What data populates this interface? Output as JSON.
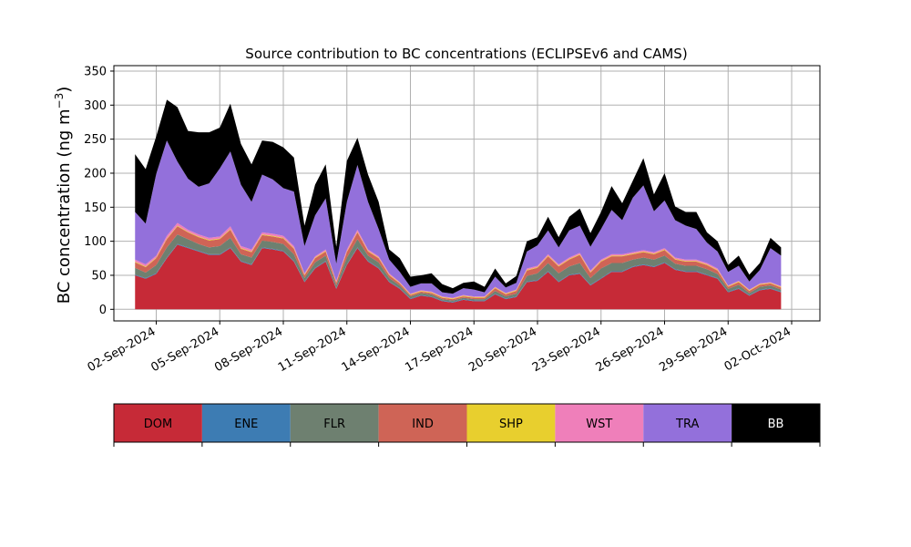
{
  "chart_data": {
    "type": "area",
    "title": "Source contribution to BC concentrations (ECLIPSEv6 and CAMS)",
    "ylabel": "BC concentration (ng m",
    "ylabel_sup": "−3",
    "ylabel_close": ")",
    "xlabel": "",
    "ylim": [
      -17,
      358
    ],
    "xlim": [
      "2024-08-31T00:00",
      "2024-10-03T08:00"
    ],
    "yticks": [
      0,
      50,
      100,
      150,
      200,
      250,
      300,
      350
    ],
    "xticks": [
      "2024-09-02",
      "2024-09-05",
      "2024-09-08",
      "2024-09-11",
      "2024-09-14",
      "2024-09-17",
      "2024-09-20",
      "2024-09-23",
      "2024-09-26",
      "2024-09-29",
      "2024-10-02"
    ],
    "xtick_labels": [
      "02-Sep-2024",
      "05-Sep-2024",
      "08-Sep-2024",
      "11-Sep-2024",
      "14-Sep-2024",
      "17-Sep-2024",
      "20-Sep-2024",
      "23-Sep-2024",
      "26-Sep-2024",
      "29-Sep-2024",
      "02-Oct-2024"
    ],
    "grid": true,
    "stacked": true,
    "x": [
      "2024-09-01T00:00",
      "2024-09-01T12:00",
      "2024-09-02T00:00",
      "2024-09-02T12:00",
      "2024-09-03T00:00",
      "2024-09-03T12:00",
      "2024-09-04T00:00",
      "2024-09-04T12:00",
      "2024-09-05T00:00",
      "2024-09-05T12:00",
      "2024-09-06T00:00",
      "2024-09-06T12:00",
      "2024-09-07T00:00",
      "2024-09-07T12:00",
      "2024-09-08T00:00",
      "2024-09-08T12:00",
      "2024-09-09T00:00",
      "2024-09-09T12:00",
      "2024-09-10T00:00",
      "2024-09-10T12:00",
      "2024-09-11T00:00",
      "2024-09-11T12:00",
      "2024-09-12T00:00",
      "2024-09-12T12:00",
      "2024-09-13T00:00",
      "2024-09-13T12:00",
      "2024-09-14T00:00",
      "2024-09-14T12:00",
      "2024-09-15T00:00",
      "2024-09-15T12:00",
      "2024-09-16T00:00",
      "2024-09-16T12:00",
      "2024-09-17T00:00",
      "2024-09-17T12:00",
      "2024-09-18T00:00",
      "2024-09-18T12:00",
      "2024-09-19T00:00",
      "2024-09-19T12:00",
      "2024-09-20T00:00",
      "2024-09-20T12:00",
      "2024-09-21T00:00",
      "2024-09-21T12:00",
      "2024-09-22T00:00",
      "2024-09-22T12:00",
      "2024-09-23T00:00",
      "2024-09-23T12:00",
      "2024-09-24T00:00",
      "2024-09-24T12:00",
      "2024-09-25T00:00",
      "2024-09-25T12:00",
      "2024-09-26T00:00",
      "2024-09-26T12:00",
      "2024-09-27T00:00",
      "2024-09-27T12:00",
      "2024-09-28T00:00",
      "2024-09-28T12:00",
      "2024-09-29T00:00",
      "2024-09-29T12:00",
      "2024-09-30T00:00",
      "2024-09-30T12:00",
      "2024-10-01T00:00",
      "2024-10-01T12:00"
    ],
    "series": [
      {
        "name": "DOM",
        "color": "#c62a37",
        "text_color": "#000000",
        "values": [
          50,
          45,
          52,
          75,
          95,
          90,
          85,
          80,
          80,
          90,
          70,
          65,
          90,
          88,
          85,
          70,
          40,
          60,
          70,
          30,
          65,
          90,
          70,
          60,
          40,
          30,
          15,
          20,
          18,
          12,
          10,
          14,
          12,
          12,
          22,
          15,
          18,
          40,
          42,
          55,
          40,
          50,
          52,
          35,
          45,
          55,
          55,
          62,
          65,
          62,
          68,
          58,
          55,
          55,
          50,
          45,
          25,
          30,
          20,
          28,
          30,
          25
        ]
      },
      {
        "name": "ENE",
        "color": "#3d7cb3",
        "text_color": "#000000",
        "values": [
          1,
          1,
          1,
          1,
          1,
          1,
          1,
          1,
          1,
          1,
          1,
          1,
          1,
          1,
          1,
          1,
          1,
          1,
          1,
          1,
          1,
          1,
          1,
          1,
          1,
          1,
          1,
          1,
          1,
          1,
          1,
          1,
          1,
          1,
          1,
          1,
          1,
          1,
          1,
          1,
          1,
          1,
          1,
          1,
          1,
          1,
          1,
          1,
          1,
          1,
          1,
          1,
          1,
          1,
          1,
          1,
          1,
          1,
          1,
          1,
          1,
          1
        ]
      },
      {
        "name": "FLR",
        "color": "#6e8070",
        "text_color": "#000000",
        "values": [
          10,
          8,
          12,
          15,
          14,
          12,
          10,
          10,
          12,
          14,
          10,
          10,
          10,
          10,
          10,
          10,
          5,
          8,
          8,
          4,
          10,
          12,
          8,
          8,
          5,
          4,
          3,
          3,
          3,
          2,
          2,
          2,
          2,
          2,
          4,
          3,
          4,
          8,
          10,
          12,
          12,
          12,
          15,
          10,
          14,
          12,
          12,
          10,
          10,
          10,
          10,
          8,
          8,
          8,
          8,
          6,
          4,
          5,
          3,
          4,
          4,
          3
        ]
      },
      {
        "name": "IND",
        "color": "#cf6456",
        "text_color": "#000000",
        "values": [
          8,
          8,
          10,
          12,
          12,
          10,
          10,
          10,
          10,
          12,
          8,
          8,
          8,
          8,
          8,
          8,
          4,
          6,
          6,
          4,
          8,
          10,
          6,
          6,
          4,
          3,
          2,
          2,
          2,
          2,
          2,
          2,
          2,
          2,
          4,
          3,
          4,
          8,
          8,
          10,
          10,
          10,
          12,
          8,
          10,
          10,
          10,
          8,
          8,
          8,
          8,
          6,
          6,
          6,
          6,
          5,
          3,
          4,
          3,
          3,
          3,
          3
        ]
      },
      {
        "name": "SHP",
        "color": "#e8cf2e",
        "text_color": "#000000",
        "values": [
          1,
          1,
          1,
          1,
          1,
          1,
          1,
          1,
          1,
          1,
          1,
          1,
          1,
          1,
          1,
          1,
          1,
          1,
          1,
          1,
          1,
          1,
          1,
          1,
          1,
          1,
          1,
          1,
          1,
          1,
          1,
          1,
          1,
          1,
          1,
          1,
          1,
          1,
          1,
          1,
          1,
          1,
          1,
          1,
          1,
          1,
          1,
          1,
          1,
          1,
          1,
          1,
          1,
          1,
          1,
          1,
          1,
          1,
          1,
          1,
          1,
          1
        ]
      },
      {
        "name": "WST",
        "color": "#ef7fba",
        "text_color": "#000000",
        "values": [
          3,
          3,
          3,
          4,
          4,
          3,
          3,
          3,
          3,
          4,
          3,
          3,
          3,
          3,
          3,
          3,
          2,
          2,
          2,
          2,
          3,
          3,
          2,
          2,
          2,
          1,
          1,
          1,
          1,
          1,
          1,
          1,
          1,
          1,
          1,
          1,
          1,
          2,
          2,
          2,
          2,
          2,
          2,
          2,
          2,
          2,
          2,
          2,
          2,
          2,
          2,
          2,
          2,
          2,
          2,
          2,
          1,
          1,
          1,
          1,
          1,
          1
        ]
      },
      {
        "name": "TRA",
        "color": "#9370db",
        "text_color": "#000000",
        "values": [
          70,
          60,
          120,
          140,
          90,
          75,
          70,
          80,
          100,
          110,
          90,
          70,
          85,
          80,
          70,
          80,
          40,
          60,
          75,
          25,
          70,
          95,
          70,
          40,
          20,
          15,
          10,
          10,
          12,
          6,
          6,
          10,
          10,
          6,
          15,
          8,
          10,
          25,
          30,
          35,
          25,
          40,
          40,
          35,
          45,
          65,
          50,
          80,
          95,
          60,
          70,
          55,
          50,
          45,
          30,
          25,
          20,
          22,
          12,
          20,
          50,
          45
        ]
      },
      {
        "name": "BB",
        "color": "#000000",
        "text_color": "#ffffff",
        "values": [
          85,
          80,
          55,
          60,
          80,
          70,
          80,
          75,
          60,
          70,
          60,
          55,
          50,
          55,
          60,
          50,
          30,
          45,
          50,
          25,
          60,
          40,
          40,
          40,
          15,
          20,
          15,
          12,
          15,
          12,
          8,
          8,
          12,
          8,
          12,
          6,
          10,
          15,
          12,
          20,
          15,
          20,
          25,
          20,
          25,
          35,
          25,
          25,
          40,
          25,
          40,
          20,
          20,
          25,
          15,
          15,
          10,
          15,
          10,
          10,
          15,
          12
        ]
      }
    ]
  }
}
